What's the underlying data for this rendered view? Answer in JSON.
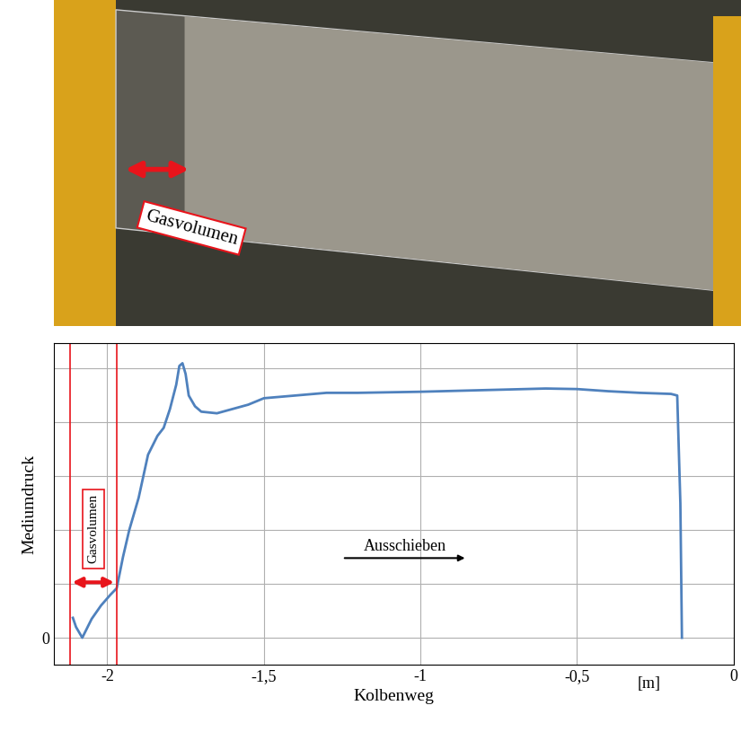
{
  "photo": {
    "label": "Gasvolumen"
  },
  "chart_data": {
    "type": "line",
    "x_label": "Kolbenweg",
    "y_label": "Mediumdruck",
    "xlim": [
      -2.17,
      0
    ],
    "ylim": [
      -0.5,
      5.47
    ],
    "xticks": [
      {
        "value": -2,
        "label": "-2"
      },
      {
        "value": -1.5,
        "label": "-1,5"
      },
      {
        "value": -1,
        "label": "-1"
      },
      {
        "value": -0.5,
        "label": "-0,5"
      },
      {
        "value": 0,
        "label": "0"
      }
    ],
    "yticks": [
      0,
      {
        "value": 1,
        "label": null
      },
      {
        "value": 2,
        "label": null
      },
      {
        "value": 3,
        "label": null
      },
      {
        "value": 4,
        "label": null
      },
      {
        "value": 5,
        "label": null
      }
    ],
    "grid": true,
    "series": [
      {
        "color": "#4f81bd",
        "x": [
          -2.11,
          -2.1,
          -2.08,
          -2.05,
          -2.02,
          -1.99,
          -1.97,
          -1.95,
          -1.93,
          -1.9,
          -1.87,
          -1.84,
          -1.82,
          -1.8,
          -1.78,
          -1.77,
          -1.76,
          -1.75,
          -1.74,
          -1.72,
          -1.7,
          -1.65,
          -1.6,
          -1.55,
          -1.5,
          -1.4,
          -1.3,
          -1.2,
          -1.0,
          -0.8,
          -0.6,
          -0.5,
          -0.4,
          -0.3,
          -0.2,
          -0.18,
          -0.17,
          -0.165
        ],
        "values": [
          0.37,
          0.2,
          0.0,
          0.35,
          0.6,
          0.8,
          0.92,
          1.5,
          2.0,
          2.6,
          3.4,
          3.75,
          3.9,
          4.25,
          4.7,
          5.05,
          5.1,
          4.9,
          4.5,
          4.3,
          4.2,
          4.17,
          4.25,
          4.33,
          4.45,
          4.5,
          4.55,
          4.55,
          4.57,
          4.6,
          4.63,
          4.62,
          4.58,
          4.55,
          4.53,
          4.5,
          2.5,
          0.0
        ]
      }
    ],
    "annotations": [
      {
        "text": "Gasvolumen",
        "x": [
          -2.12,
          -1.97
        ],
        "y": 1.03,
        "color": "#e8141b"
      },
      {
        "text": "Ausschieben",
        "x": [
          -1.25,
          -0.85
        ],
        "y": 1.48
      },
      {
        "text": "[m]",
        "x": -0.27
      }
    ]
  }
}
